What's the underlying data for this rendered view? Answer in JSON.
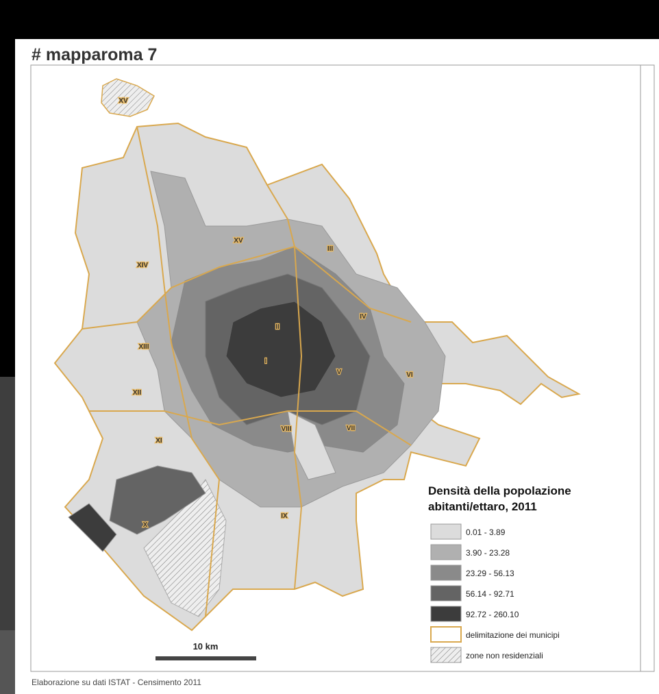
{
  "header": {
    "title": "# mapparoma 7"
  },
  "map": {
    "labels": [
      "XV",
      "XV",
      "III",
      "XIV",
      "II",
      "IV",
      "XIII",
      "I",
      "V",
      "XII",
      "VI",
      "XI",
      "VIII",
      "VII",
      "X",
      "IX"
    ]
  },
  "legend": {
    "title": "Densità della popolazione",
    "subtitle": "abitanti/ettaro, 2011",
    "items": [
      {
        "label": "0.01 - 3.89",
        "color": "#dcdcdc"
      },
      {
        "label": "3.90 - 23.28",
        "color": "#b0b0b0"
      },
      {
        "label": "23.29 - 56.13",
        "color": "#8a8a8a"
      },
      {
        "label": "56.14 - 92.71",
        "color": "#646464"
      },
      {
        "label": "92.72 - 260.10",
        "color": "#3c3c3c"
      }
    ],
    "boundary": "delimitazione dei municipi",
    "nonresidential": "zone non residenziali"
  },
  "scale": {
    "label": "10 km"
  },
  "footer": {
    "source": "Elaborazione su dati ISTAT - Censimento 2011"
  }
}
